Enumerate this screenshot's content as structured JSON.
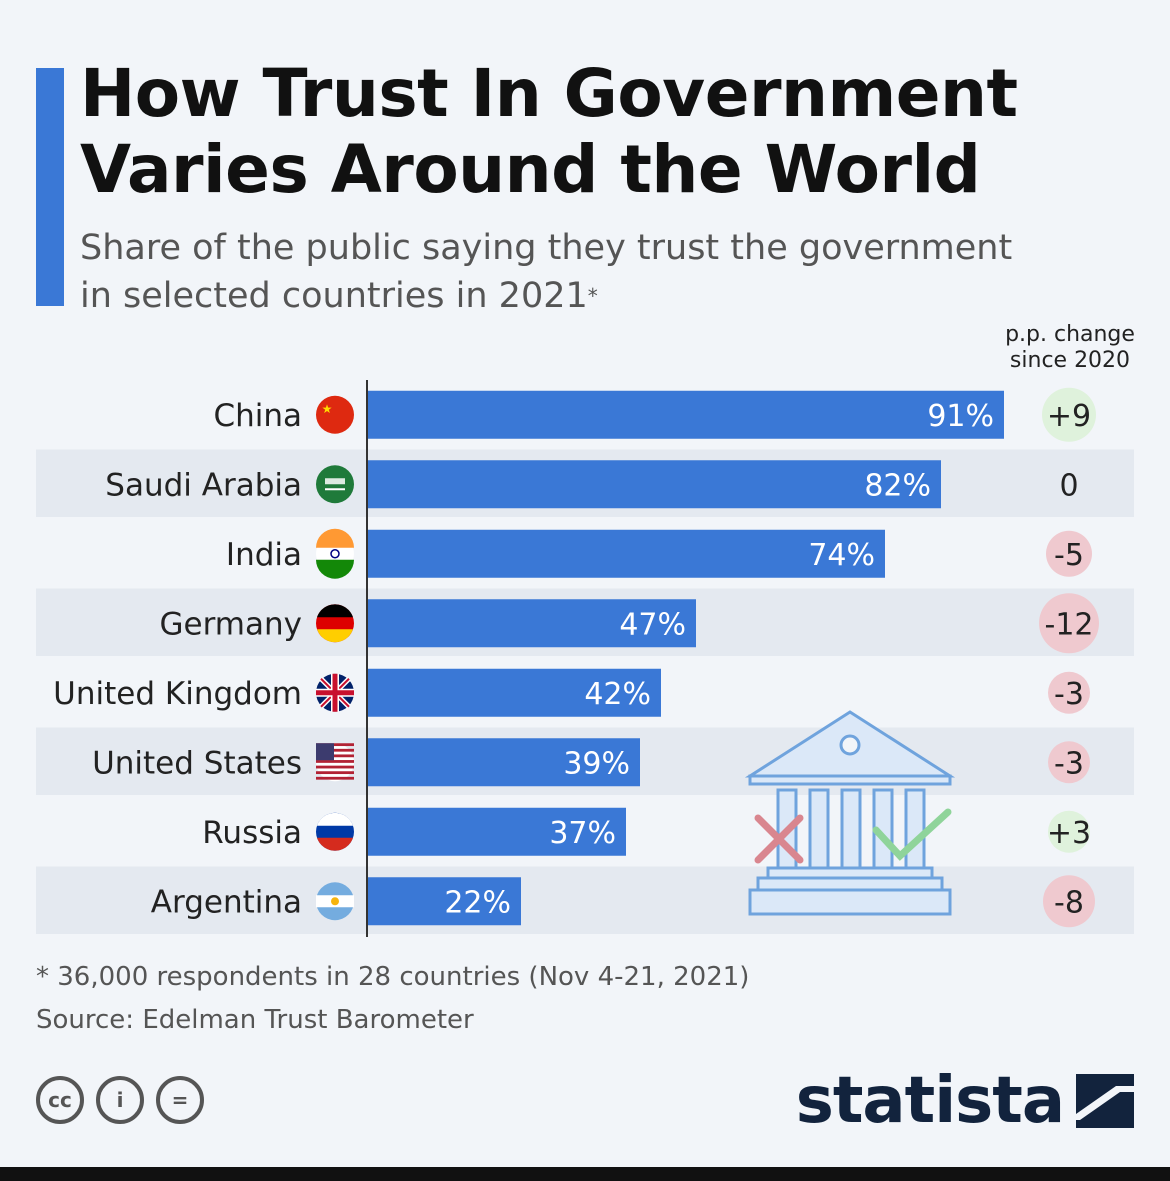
{
  "header": {
    "title_line1": "How Trust In Government",
    "title_line2": "Varies Around the World",
    "subtitle_line1": "Share of the public saying they trust the government",
    "subtitle_line2": "in selected countries in 2021",
    "subtitle_mark": "*",
    "accent_color": "#3a78d6"
  },
  "change_header": {
    "line1": "p.p. change",
    "line2": "since 2020"
  },
  "chart_data": {
    "type": "bar",
    "orientation": "horizontal",
    "categories": [
      "China",
      "Saudi Arabia",
      "India",
      "Germany",
      "United Kingdom",
      "United States",
      "Russia",
      "Argentina"
    ],
    "values": [
      91,
      82,
      74,
      47,
      42,
      39,
      37,
      22
    ],
    "value_labels": [
      "91%",
      "82%",
      "74%",
      "47%",
      "42%",
      "39%",
      "37%",
      "22%"
    ],
    "changes": [
      "+9",
      "0",
      "-5",
      "-12",
      "-3",
      "-3",
      "+3",
      "-8"
    ],
    "change_values": [
      9,
      0,
      -5,
      -12,
      -3,
      -3,
      3,
      -8
    ],
    "xlim": [
      0,
      100
    ],
    "bar_color": "#3a78d6",
    "positive_badge_color": "#dff2dc",
    "negative_badge_color": "#efc9cf",
    "stripe_color": "#e4e9f0",
    "flag_icons": [
      "china-flag-icon",
      "saudi-arabia-flag-icon",
      "india-flag-icon",
      "germany-flag-icon",
      "united-kingdom-flag-icon",
      "united-states-flag-icon",
      "russia-flag-icon",
      "argentina-flag-icon"
    ]
  },
  "footer": {
    "footnote": "* 36,000 respondents in 28 countries (Nov 4-21, 2021)",
    "source": "Source: Edelman Trust Barometer",
    "brand": "statista",
    "cc_label": "cc",
    "by_label": "i",
    "nd_label": "="
  }
}
